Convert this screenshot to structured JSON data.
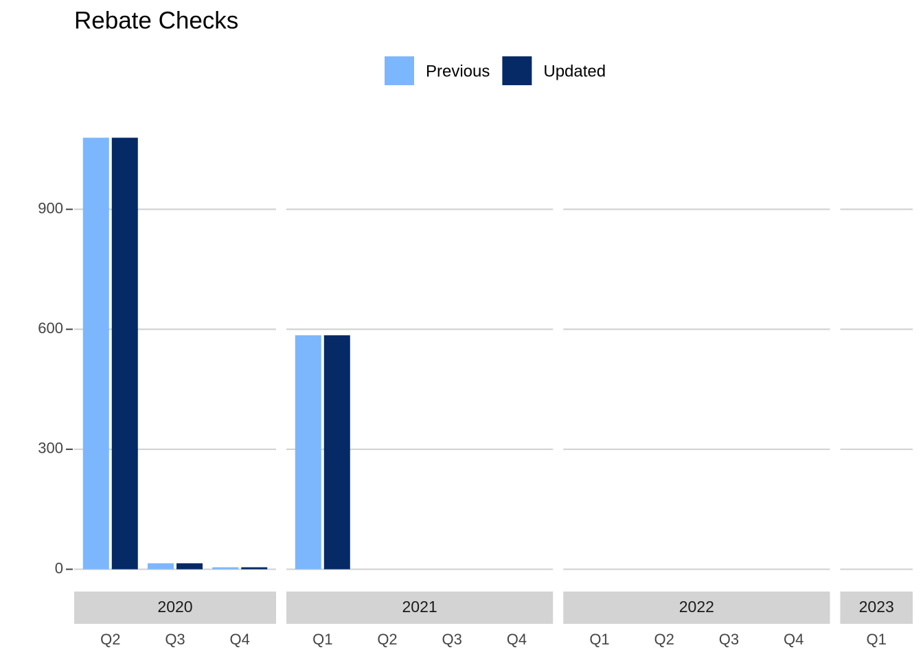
{
  "chart_data": {
    "type": "bar",
    "title": "Rebate Checks",
    "groups": [
      {
        "name": "2020",
        "categories": [
          "Q2",
          "Q3",
          "Q4"
        ]
      },
      {
        "name": "2021",
        "categories": [
          "Q1",
          "Q2",
          "Q3",
          "Q4"
        ]
      },
      {
        "name": "2022",
        "categories": [
          "Q1",
          "Q2",
          "Q3",
          "Q4"
        ]
      },
      {
        "name": "2023",
        "categories": [
          "Q1"
        ]
      }
    ],
    "series": [
      {
        "name": "Previous",
        "color": "#7cb7fd",
        "values": [
          1079,
          15,
          5,
          585,
          0,
          0,
          0,
          0,
          0,
          0,
          0,
          0
        ]
      },
      {
        "name": "Updated",
        "color": "#052a66",
        "values": [
          1079,
          15,
          5,
          585,
          0,
          0,
          0,
          0,
          0,
          0,
          0,
          0
        ]
      }
    ],
    "ylim": [
      -54,
      1133
    ],
    "yticks": [
      0,
      300,
      600,
      900
    ],
    "grid": true,
    "legend": "top"
  }
}
